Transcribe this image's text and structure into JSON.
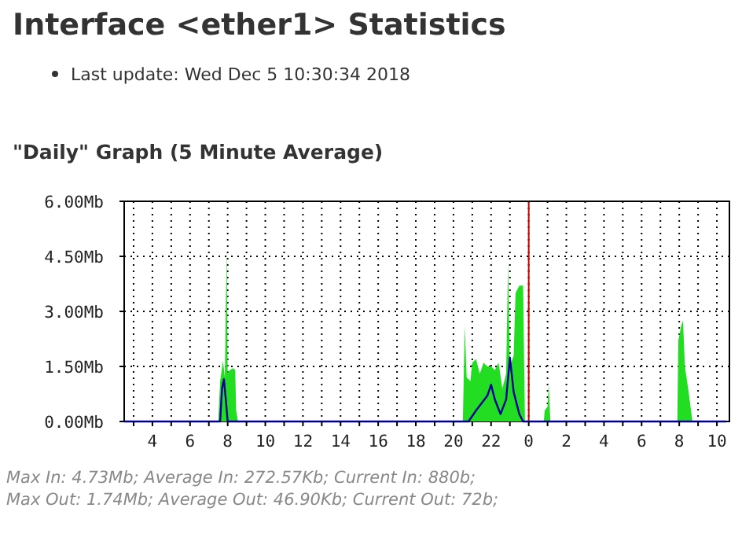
{
  "chart_data": {
    "type": "area",
    "title": "Interface <ether1> Statistics",
    "subtitle": "Last update: Wed Dec 5 10:30:34 2018",
    "annotations": [
      "\"Daily\" Graph (5 Minute Average)",
      "Max In: 4.73Mb; Average In: 272.57Kb; Current In: 880b;",
      "Max Out: 1.74Mb; Average Out: 46.90Kb; Current Out: 72b;"
    ],
    "xlim": [
      "2018-12-04T02:30",
      "2018-12-05T10:40"
    ],
    "xticks": [
      {
        "value": "2018-12-04T03:00",
        "label": null
      },
      {
        "value": "2018-12-04T04:00",
        "label": "4"
      },
      {
        "value": "2018-12-04T05:00",
        "label": null
      },
      {
        "value": "2018-12-04T06:00",
        "label": "6"
      },
      {
        "value": "2018-12-04T07:00",
        "label": null
      },
      {
        "value": "2018-12-04T08:00",
        "label": "8"
      },
      {
        "value": "2018-12-04T09:00",
        "label": null
      },
      {
        "value": "2018-12-04T10:00",
        "label": "10"
      },
      {
        "value": "2018-12-04T11:00",
        "label": null
      },
      {
        "value": "2018-12-04T12:00",
        "label": "12"
      },
      {
        "value": "2018-12-04T13:00",
        "label": null
      },
      {
        "value": "2018-12-04T14:00",
        "label": "14"
      },
      {
        "value": "2018-12-04T15:00",
        "label": null
      },
      {
        "value": "2018-12-04T16:00",
        "label": "16"
      },
      {
        "value": "2018-12-04T17:00",
        "label": null
      },
      {
        "value": "2018-12-04T18:00",
        "label": "18"
      },
      {
        "value": "2018-12-04T19:00",
        "label": null
      },
      {
        "value": "2018-12-04T20:00",
        "label": "20"
      },
      {
        "value": "2018-12-04T21:00",
        "label": null
      },
      {
        "value": "2018-12-04T22:00",
        "label": "22"
      },
      {
        "value": "2018-12-04T23:00",
        "label": null
      },
      {
        "value": "2018-12-05T00:00",
        "label": "0"
      },
      {
        "value": "2018-12-05T01:00",
        "label": null
      },
      {
        "value": "2018-12-05T02:00",
        "label": "2"
      },
      {
        "value": "2018-12-05T03:00",
        "label": null
      },
      {
        "value": "2018-12-05T04:00",
        "label": "4"
      },
      {
        "value": "2018-12-05T05:00",
        "label": null
      },
      {
        "value": "2018-12-05T06:00",
        "label": "6"
      },
      {
        "value": "2018-12-05T07:00",
        "label": null
      },
      {
        "value": "2018-12-05T08:00",
        "label": "8"
      },
      {
        "value": "2018-12-05T09:00",
        "label": null
      },
      {
        "value": "2018-12-05T10:00",
        "label": "10"
      }
    ],
    "ylim": [
      0,
      6
    ],
    "yticks": [
      {
        "value": 0,
        "label": "0.00Mb"
      },
      {
        "value": 1.5,
        "label": "1.50Mb"
      },
      {
        "value": 3,
        "label": "3.00Mb"
      },
      {
        "value": 4.5,
        "label": "4.50Mb"
      },
      {
        "value": 6,
        "label": "6.00Mb"
      }
    ],
    "grid": true,
    "ref_lines": [
      {
        "axis": "x",
        "value": "2018-12-05T00:00",
        "color": "#cc0000"
      }
    ],
    "series": [
      {
        "color": "#22dd22",
        "x": [
          "2018-12-04T02:30",
          "2018-12-04T07:30",
          "2018-12-04T07:36",
          "2018-12-04T07:45",
          "2018-12-04T07:51",
          "2018-12-04T07:57",
          "2018-12-04T08:00",
          "2018-12-04T08:06",
          "2018-12-04T08:18",
          "2018-12-04T08:24",
          "2018-12-04T08:27",
          "2018-12-04T08:33",
          "2018-12-04T20:30",
          "2018-12-04T20:36",
          "2018-12-04T20:42",
          "2018-12-04T20:54",
          "2018-12-04T21:00",
          "2018-12-04T21:12",
          "2018-12-04T21:24",
          "2018-12-04T21:36",
          "2018-12-04T21:48",
          "2018-12-04T22:00",
          "2018-12-04T22:12",
          "2018-12-04T22:24",
          "2018-12-04T22:36",
          "2018-12-04T22:48",
          "2018-12-04T22:54",
          "2018-12-04T23:00",
          "2018-12-04T23:12",
          "2018-12-04T23:18",
          "2018-12-04T23:30",
          "2018-12-04T23:42",
          "2018-12-04T23:48",
          "2018-12-05T00:48",
          "2018-12-05T00:51",
          "2018-12-05T01:00",
          "2018-12-05T01:04",
          "2018-12-05T01:09",
          "2018-12-05T07:54",
          "2018-12-05T07:57",
          "2018-12-05T08:06",
          "2018-12-05T08:12",
          "2018-12-05T08:18",
          "2018-12-05T08:30",
          "2018-12-05T08:36",
          "2018-12-05T08:42",
          "2018-12-05T10:30"
        ],
        "values": [
          0,
          0,
          1.1,
          1.65,
          1.2,
          4.73,
          1.3,
          1.4,
          1.45,
          1.4,
          0.3,
          0,
          0,
          2.6,
          1.2,
          1.1,
          1.6,
          1.7,
          1.3,
          1.6,
          1.5,
          1.5,
          1.4,
          1.6,
          0.9,
          1.3,
          4.3,
          1.5,
          1.8,
          3.5,
          3.7,
          3.7,
          0,
          0,
          0.3,
          0.4,
          1.0,
          0,
          0,
          2.2,
          2.6,
          2.75,
          1.5,
          0.8,
          0.4,
          0,
          0
        ]
      },
      {
        "type": "line",
        "color": "#000099",
        "x": [
          "2018-12-04T02:30",
          "2018-12-04T07:36",
          "2018-12-04T07:42",
          "2018-12-04T07:48",
          "2018-12-04T07:54",
          "2018-12-04T08:00",
          "2018-12-04T20:48",
          "2018-12-04T21:12",
          "2018-12-04T21:48",
          "2018-12-04T22:00",
          "2018-12-04T22:12",
          "2018-12-04T22:30",
          "2018-12-04T22:48",
          "2018-12-04T23:00",
          "2018-12-04T23:12",
          "2018-12-04T23:30",
          "2018-12-04T23:42",
          "2018-12-05T10:30"
        ],
        "values": [
          0,
          0,
          0.9,
          1.15,
          0.6,
          0,
          0,
          0.3,
          0.7,
          1.0,
          0.6,
          0.2,
          0.6,
          1.74,
          0.8,
          0.2,
          0,
          0
        ]
      }
    ]
  }
}
